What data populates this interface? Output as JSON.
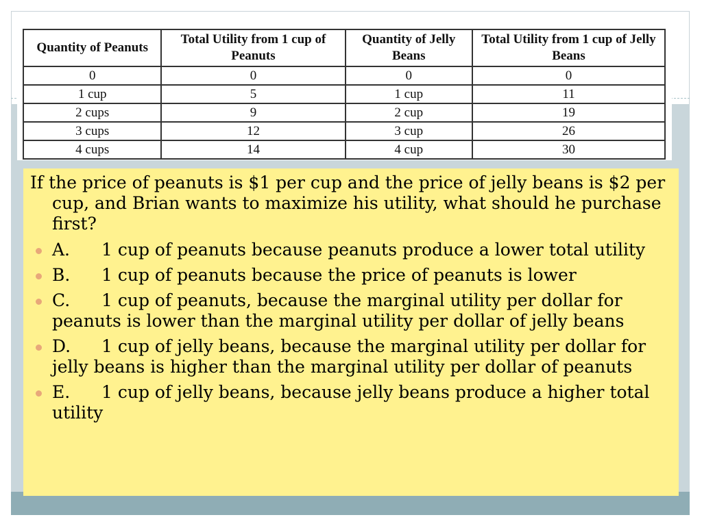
{
  "table": {
    "headers": [
      "Quantity of Peanuts",
      "Total Utility from 1 cup of Peanuts",
      "Quantity of Jelly Beans",
      "Total Utility from 1 cup of Jelly Beans"
    ],
    "rows": [
      [
        "0",
        "0",
        "0",
        "0"
      ],
      [
        "1 cup",
        "5",
        "1 cup",
        "11"
      ],
      [
        "2 cups",
        "9",
        "2 cup",
        "19"
      ],
      [
        "3 cups",
        "12",
        "3 cup",
        "26"
      ],
      [
        "4 cups",
        "14",
        "4 cup",
        "30"
      ]
    ]
  },
  "question": "If the price of peanuts is $1 per cup and the price of jelly beans is $2 per cup, and Brian wants to maximize his utility, what should he purchase first?",
  "options": [
    {
      "letter": "A.",
      "text": "1 cup of peanuts because peanuts produce a lower total utility"
    },
    {
      "letter": "B.",
      "text": "1 cup of peanuts because the price of peanuts is lower"
    },
    {
      "letter": "C.",
      "text": "1 cup of peanuts, because the marginal utility per dollar for peanuts is lower than the marginal utility per dollar of jelly beans"
    },
    {
      "letter": "D.",
      "text": "1 cup of jelly beans, because the marginal utility per dollar for jelly beans is higher than the marginal utility per dollar of peanuts"
    },
    {
      "letter": "E.",
      "text": "1 cup of jelly beans, because jelly beans produce a higher total utility"
    }
  ],
  "colors": {
    "answer_box": "#fff28f",
    "bullet": "#e8a87a",
    "side_bar": "#c9d6db",
    "bottom_band": "#8fadb5"
  }
}
